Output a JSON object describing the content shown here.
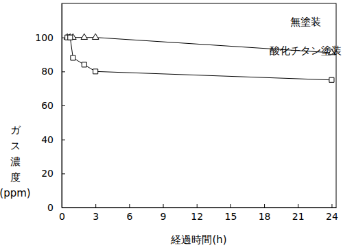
{
  "chart_data": {
    "type": "line",
    "x_label": "経過時間(h)",
    "y_label": "ガス濃度(ppm)",
    "x": [
      0.5,
      0.75,
      1,
      2,
      3,
      24
    ],
    "series": [
      {
        "name": "無塗装",
        "color": "#000000",
        "marker": "triangle",
        "values": [
          100,
          100,
          100,
          100,
          100,
          91
        ]
      },
      {
        "name": "酸化チタン塗装",
        "color": "#000000",
        "marker": "square",
        "values": [
          100,
          100,
          88,
          84,
          80,
          75
        ]
      }
    ],
    "xlim": [
      0,
      24.4
    ],
    "xticks": [
      0,
      3,
      6,
      9,
      12,
      15,
      18,
      21,
      24
    ],
    "ylim": [
      0,
      120
    ],
    "yticks": [
      0,
      20,
      40,
      60,
      80,
      100
    ],
    "grid": false
  }
}
